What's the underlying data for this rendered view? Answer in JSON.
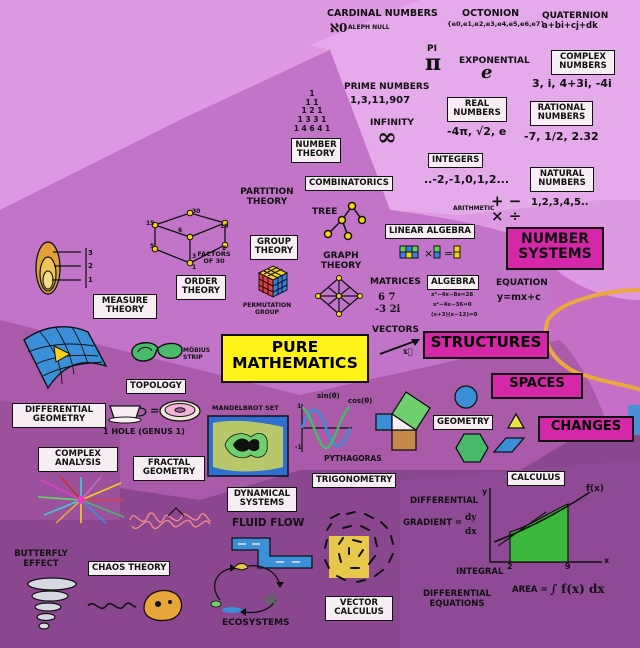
{
  "title": "PURE MATHEMATICS",
  "main_boxes": {
    "number_systems": "NUMBER SYSTEMS",
    "structures": "STRUCTURES",
    "spaces": "SPACES",
    "changes": "CHANGES"
  },
  "number_systems": {
    "cardinal": "CARDINAL NUMBERS",
    "aleph_symbol": "ℵ0",
    "aleph_label": "ALEPH NULL",
    "octonion": "OCTONION",
    "octonion_expr": "{e0,e1,e2,e3,e4,e5,e6,e7}",
    "quaternion": "QUATERNION",
    "quaternion_expr": "a+bi+cj+dk",
    "pi_label": "PI",
    "pi_symbol": "π",
    "exponential_label": "EXPONENTIAL",
    "e_symbol": "e",
    "complex_box": "COMPLEX NUMBERS",
    "complex_examples": "3, i, 4+3i, -4i",
    "prime_label": "PRIME NUMBERS",
    "prime_examples": "1,3,11,907",
    "real_box": "REAL NUMBERS",
    "real_examples": "-4π, √2, e",
    "rational_box": "RATIONAL NUMBERS",
    "rational_examples": "-7, 1/2, 2.32",
    "infinity_label": "INFINITY",
    "infinity_symbol": "∞",
    "integers_box": "INTEGERS",
    "integers_examples": "..-2,-1,0,1,2...",
    "natural_box": "NATURAL NUMBERS",
    "natural_examples": "1,2,3,4,5..",
    "arithmetic_label": "ARITHMETIC",
    "arithmetic_symbols_top": "+ −",
    "arithmetic_symbols_bottom": "× ÷"
  },
  "structures": {
    "pascal_rows": [
      "1",
      "1 1",
      "1 2 1",
      "1 3 3 1",
      "1 4 6 4 1"
    ],
    "number_theory_box": "NUMBER THEORY",
    "combinatorics_box": "COMBINATORICS",
    "partition_label": "PARTITION THEORY",
    "tree_label": "TREE",
    "graph_label": "GRAPH THEORY",
    "linear_algebra_box": "LINEAR ALGEBRA",
    "group_box": "GROUP THEORY",
    "permutation_label": "PERMUTATION GROUP",
    "order_box": "ORDER THEORY",
    "factors_label": "FACTORS OF 30",
    "factors_numbers": [
      "30",
      "15",
      "10",
      "5",
      "6",
      "3",
      "2",
      "1"
    ],
    "matrices_label": "MATRICES",
    "matrix_expr_top": "6  7",
    "matrix_expr_bottom": "-3  2i",
    "algebra_box": "ALGEBRA",
    "algebra_lines": [
      "x³−4x−8x=28",
      "x²−4x−36=0",
      "(x+3)(x−12)=0"
    ],
    "equation_label": "EQUATION",
    "equation_expr": "y=mx+c",
    "vectors_label": "VECTORS",
    "vector_symbol": "x⃗"
  },
  "spaces": {
    "measure_box": "MEASURE THEORY",
    "measure_numbers": [
      "3",
      "2",
      "1"
    ],
    "mobius_label": "MÖBIUS STRIP",
    "topology_box": "TOPOLOGY",
    "diff_geom_box": "DIFFERENTIAL GEOMETRY",
    "hole_label": "1 HOLE (GENUS 1)",
    "equals": "=",
    "mandelbrot_label": "MANDELBROT SET",
    "fractal_box": "FRACTAL GEOMETRY",
    "sin_label": "sin(θ)",
    "cos_label": "cos(θ)",
    "trig_axis": "1",
    "trig_axis_neg": "-1",
    "pythagoras_label": "PYTHAGORAS",
    "trigonometry_box": "TRIGONOMETRY",
    "geometry_box": "GEOMETRY"
  },
  "changes": {
    "complex_analysis_box": "COMPLEX ANALYSIS",
    "dynamical_box": "DYNAMICAL SYSTEMS",
    "calculus_box": "CALCULUS",
    "differential_label": "DIFFERENTIAL",
    "gradient_label": "GRADIENT =",
    "gradient_top": "dy",
    "gradient_bottom": "dx",
    "integral_label": "INTEGRAL",
    "area_label": "AREA =",
    "area_expr": "∫ f(x) dx",
    "fx_label": "f(x)",
    "axis_y": "y",
    "axis_x": "x",
    "bound_a": "2",
    "bound_b": "9",
    "fluid_label": "FLUID FLOW",
    "butterfly_label": "BUTTERFLY EFFECT",
    "chaos_box": "CHAOS THEORY",
    "ecosystems_label": "ECOSYSTEMS",
    "vector_calc_box": "VECTOR CALCULUS",
    "diff_eq_label": "DIFFERENTIAL EQUATIONS"
  },
  "colors": {
    "number_region": "#d995e0",
    "number_region_light": "#e2a5e8",
    "structure_region": "#c272c7",
    "space_region": "#a85aa9",
    "change_region": "#8d4791",
    "title_box": "#fff31a",
    "main_box": "#d428a8",
    "outer_blue": "#4a8ed8",
    "outer_orange": "#eaa83d"
  }
}
